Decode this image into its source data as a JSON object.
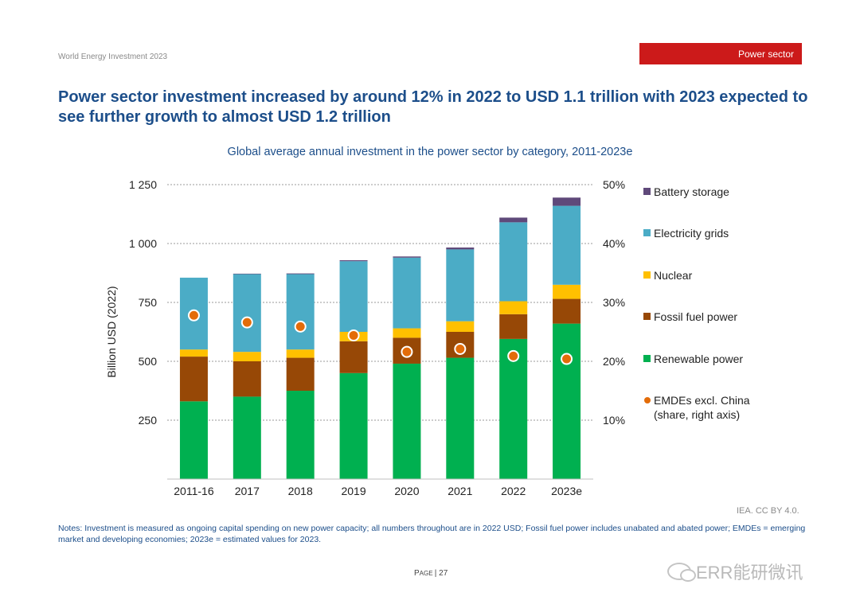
{
  "header": {
    "running_title": "World Energy Investment 2023",
    "section_label": "Power sector",
    "headline": "Power sector investment increased by around 12% in 2022 to USD 1.1 trillion with 2023 expected to see further growth to almost USD 1.2 trillion"
  },
  "chart_data": {
    "type": "bar",
    "stacked": true,
    "title": "Global average annual investment in the power sector by category, 2011-2023e",
    "ylabel": "Billion USD (2022)",
    "xlabel": "",
    "ylim": [
      0,
      1250
    ],
    "y_ticks": [
      250,
      500,
      750,
      1000,
      1250
    ],
    "y_tick_labels": [
      "250",
      "500",
      "750",
      "1 000",
      "1 250"
    ],
    "y2lim": [
      0,
      50
    ],
    "y2_ticks": [
      10,
      20,
      30,
      40,
      50
    ],
    "y2_tick_labels": [
      "10%",
      "20%",
      "30%",
      "40%",
      "50%"
    ],
    "grid": true,
    "legend_position": "right",
    "categories": [
      "2011-16",
      "2017",
      "2018",
      "2019",
      "2020",
      "2021",
      "2022",
      "2023e"
    ],
    "series": [
      {
        "name": "Renewable power",
        "color": "#00b050",
        "values": [
          330,
          350,
          375,
          450,
          490,
          515,
          595,
          660
        ]
      },
      {
        "name": "Fossil fuel power",
        "color": "#974806",
        "values": [
          190,
          150,
          140,
          135,
          110,
          110,
          105,
          105
        ]
      },
      {
        "name": "Nuclear",
        "color": "#ffc000",
        "values": [
          30,
          40,
          35,
          40,
          40,
          45,
          55,
          60
        ]
      },
      {
        "name": "Electricity grids",
        "color": "#4bacc6",
        "values": [
          305,
          330,
          320,
          300,
          300,
          305,
          335,
          335
        ]
      },
      {
        "name": "Battery storage",
        "color": "#5f497a",
        "values": [
          0,
          2,
          3,
          4,
          5,
          8,
          20,
          35
        ]
      }
    ],
    "line_series": {
      "name": "EMDEs excl. China\n(share, right axis)",
      "color": "#e36c09",
      "axis": "right",
      "values": [
        27.8,
        26.6,
        25.9,
        24.4,
        21.6,
        22.1,
        20.9,
        20.4
      ]
    },
    "legend_order": [
      "Battery storage",
      "Electricity grids",
      "Nuclear",
      "Fossil fuel power",
      "Renewable power",
      "EMDEs excl. China\n(share, right axis)"
    ]
  },
  "footer": {
    "credit": "IEA. CC BY 4.0.",
    "notes": "Notes: Investment is measured as ongoing capital spending on new power capacity; all numbers throughout are in 2022 USD; Fossil fuel power includes unabated and abated power; EMDEs = emerging market and developing economies; 2023e = estimated values for 2023.",
    "page_label": "Page | 27",
    "watermark": "ERR能研微讯"
  }
}
